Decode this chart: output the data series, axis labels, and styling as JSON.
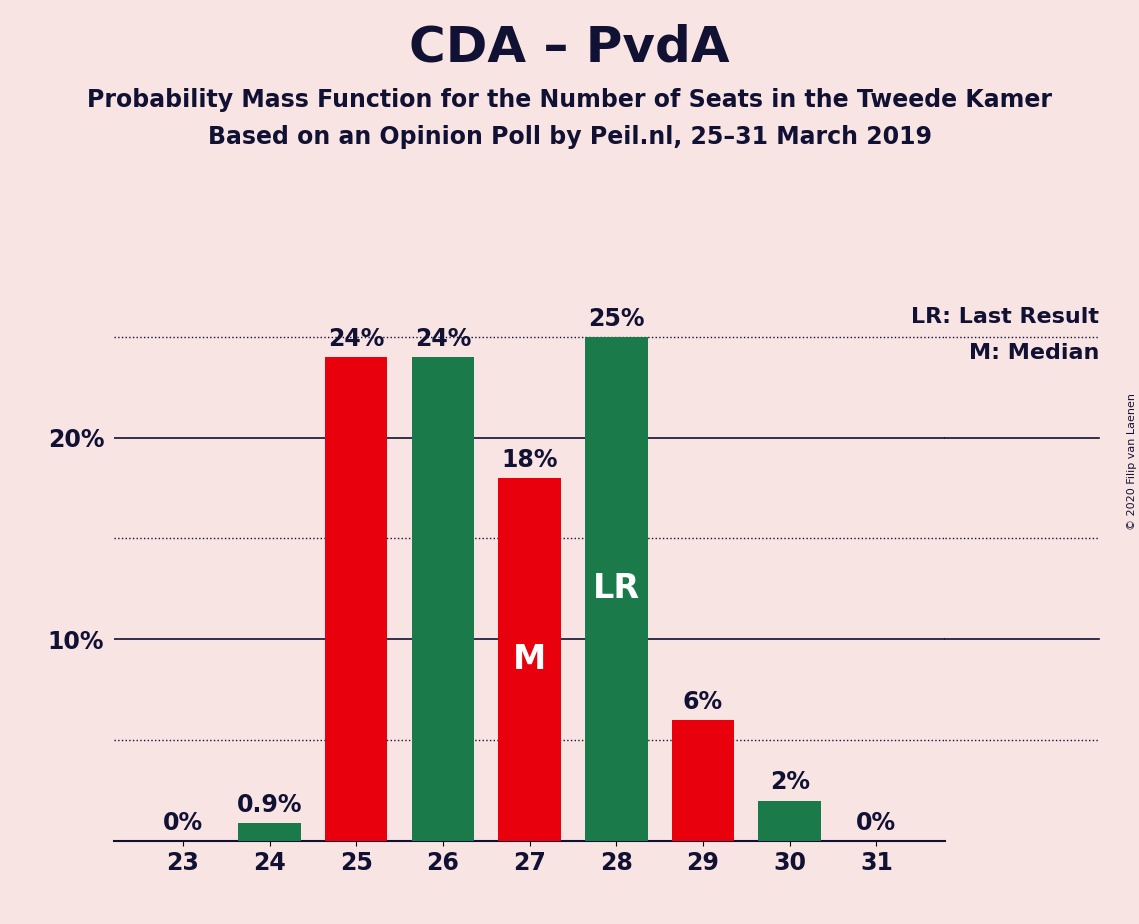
{
  "title": "CDA – PvdA",
  "subtitle1": "Probability Mass Function for the Number of Seats in the Tweede Kamer",
  "subtitle2": "Based on an Opinion Poll by Peil.nl, 25–31 March 2019",
  "copyright": "© 2020 Filip van Laenen",
  "categories": [
    23,
    24,
    25,
    26,
    27,
    28,
    29,
    30,
    31
  ],
  "values": [
    0.0,
    0.9,
    24.0,
    24.0,
    18.0,
    25.0,
    6.0,
    2.0,
    0.0
  ],
  "labels": [
    "0%",
    "0.9%",
    "24%",
    "24%",
    "18%",
    "25%",
    "6%",
    "2%",
    "0%"
  ],
  "colors": [
    "#e8000d",
    "#1a7a4a",
    "#e8000d",
    "#1a7a4a",
    "#e8000d",
    "#1a7a4a",
    "#e8000d",
    "#1a7a4a",
    "#e8000d"
  ],
  "median_bar": 27,
  "lr_bar": 28,
  "median_label": "M",
  "lr_label": "LR",
  "lr_legend": "LR: Last Result",
  "m_legend": "M: Median",
  "background_color": "#f9e4e4",
  "ylim": [
    0,
    27.5
  ],
  "solid_lines": [
    10,
    20
  ],
  "dotted_lines": [
    5,
    15,
    25
  ],
  "title_fontsize": 36,
  "subtitle_fontsize": 17,
  "bar_label_fontsize": 17,
  "inside_label_fontsize": 24,
  "axis_fontsize": 17,
  "legend_fontsize": 16,
  "tick_color": "#111133"
}
